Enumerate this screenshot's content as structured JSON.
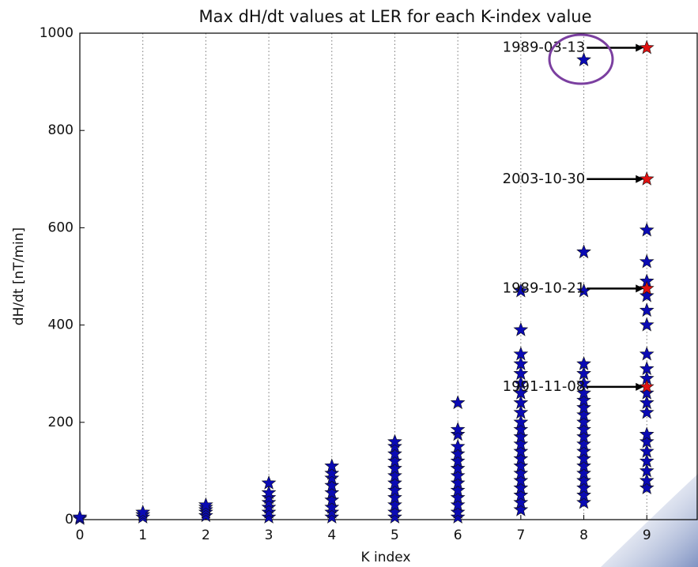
{
  "chart_data": {
    "type": "scatter",
    "title": "Max dH/dt values at LER for each K-index value",
    "x_label": "K index",
    "y_label": "dH/dt [nT/min]",
    "xlim": [
      0,
      9.8
    ],
    "ylim": [
      0,
      1000
    ],
    "xticks": [
      0,
      1,
      2,
      3,
      4,
      5,
      6,
      7,
      8,
      9
    ],
    "yticks": [
      0,
      200,
      400,
      600,
      800,
      1000
    ],
    "grid": true,
    "series": [
      {
        "color": "#0a0ab4",
        "x": [
          0,
          0,
          1,
          1,
          1,
          2,
          2,
          2,
          2,
          2,
          3,
          3,
          3,
          3,
          3,
          3,
          3,
          4,
          4,
          4,
          4,
          4,
          4,
          4,
          4,
          4,
          5,
          5,
          5,
          5,
          5,
          5,
          5,
          5,
          5,
          5,
          5,
          5,
          6,
          6,
          6,
          6,
          6,
          6,
          6,
          6,
          6,
          6,
          6,
          6,
          6,
          6,
          7,
          7,
          7,
          7,
          7,
          7,
          7,
          7,
          7,
          7,
          7,
          7,
          7,
          7,
          7,
          7,
          7,
          7,
          7,
          7,
          7,
          7,
          8,
          8,
          8,
          8,
          8,
          8,
          8,
          8,
          8,
          8,
          8,
          8,
          8,
          8,
          8,
          8,
          8,
          8,
          8,
          8,
          8,
          8,
          9,
          9,
          9,
          9,
          9,
          9,
          9,
          9,
          9,
          9,
          9,
          9,
          9,
          9,
          9,
          9,
          9,
          9,
          9
        ],
        "values": [
          2,
          5,
          5,
          10,
          15,
          8,
          15,
          20,
          25,
          30,
          5,
          15,
          25,
          35,
          45,
          55,
          75,
          5,
          15,
          25,
          40,
          55,
          70,
          85,
          95,
          110,
          5,
          15,
          30,
          45,
          60,
          75,
          90,
          105,
          120,
          135,
          150,
          160,
          5,
          15,
          30,
          45,
          60,
          75,
          90,
          105,
          120,
          135,
          150,
          175,
          185,
          240,
          20,
          35,
          50,
          65,
          80,
          95,
          110,
          125,
          140,
          155,
          170,
          185,
          200,
          220,
          240,
          260,
          280,
          300,
          320,
          340,
          390,
          470,
          35,
          50,
          65,
          80,
          95,
          110,
          125,
          140,
          155,
          170,
          185,
          200,
          215,
          230,
          245,
          260,
          280,
          300,
          320,
          470,
          550,
          945,
          65,
          80,
          100,
          120,
          140,
          160,
          175,
          220,
          240,
          260,
          290,
          310,
          340,
          400,
          430,
          460,
          490,
          530,
          595
        ]
      },
      {
        "color": "#e01010",
        "x": [
          9,
          9,
          9,
          9
        ],
        "values": [
          970,
          700,
          475,
          273
        ]
      }
    ],
    "annotations": [
      {
        "text": "1989-03-13",
        "x": 9,
        "y": 970
      },
      {
        "text": "2003-10-30",
        "x": 9,
        "y": 700
      },
      {
        "text": "1989-10-21",
        "x": 9,
        "y": 475
      },
      {
        "text": "1991-11-08",
        "x": 9,
        "y": 273
      }
    ]
  }
}
